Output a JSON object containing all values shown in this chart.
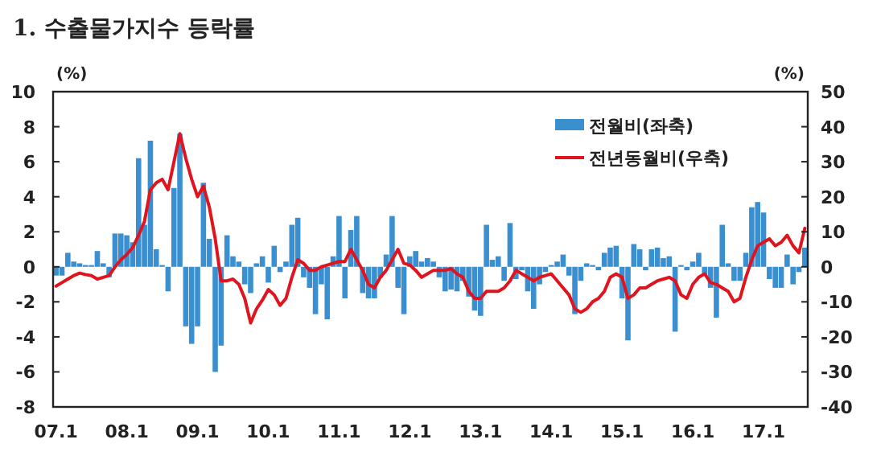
{
  "chart_data": {
    "type": "bar",
    "title": "1. 수출물가지수 등락률",
    "ylabel": "(%)",
    "y2label": "(%)",
    "categories": [
      "07.1",
      null,
      null,
      null,
      null,
      null,
      null,
      null,
      null,
      null,
      null,
      null,
      "08.1",
      null,
      null,
      null,
      null,
      null,
      null,
      null,
      null,
      null,
      null,
      null,
      "09.1",
      null,
      null,
      null,
      null,
      null,
      null,
      null,
      null,
      null,
      null,
      null,
      "10.1",
      null,
      null,
      null,
      null,
      null,
      null,
      null,
      null,
      null,
      null,
      null,
      "11.1",
      null,
      null,
      null,
      null,
      null,
      null,
      null,
      null,
      null,
      null,
      null,
      "12.1",
      null,
      null,
      null,
      null,
      null,
      null,
      null,
      null,
      null,
      null,
      null,
      "13.1",
      null,
      null,
      null,
      null,
      null,
      null,
      null,
      null,
      null,
      null,
      null,
      "14.1",
      null,
      null,
      null,
      null,
      null,
      null,
      null,
      null,
      null,
      null,
      null,
      "15.1",
      null,
      null,
      null,
      null,
      null,
      null,
      null,
      null,
      null,
      null,
      null,
      "16.1",
      null,
      null,
      null,
      null,
      null,
      null,
      null,
      null,
      null,
      null,
      null,
      "17.1",
      null,
      null,
      null,
      null,
      null,
      null,
      null
    ],
    "series": [
      {
        "name": "전월비(좌축)",
        "color": "#3a8fd0",
        "values": [
          -0.5,
          -0.5,
          0.8,
          0.3,
          0.2,
          0.1,
          0.1,
          0.9,
          0.2,
          -0.6,
          1.9,
          1.9,
          1.8,
          1.4,
          6.2,
          2.4,
          7.2,
          1.0,
          0.1,
          -1.4,
          4.5,
          7.6,
          -3.4,
          -4.4,
          -3.4,
          4.8,
          1.6,
          -6.0,
          -4.5,
          1.8,
          0.6,
          0.3,
          -1.0,
          -1.5,
          0.2,
          0.6,
          -0.9,
          1.2,
          -0.3,
          0.3,
          2.4,
          2.8,
          -0.6,
          -1.2,
          -2.7,
          -1.0,
          -3.0,
          0.6,
          2.9,
          -1.8,
          2.1,
          2.9,
          -1.5,
          -1.8,
          -1.8,
          -0.6,
          0.7,
          2.9,
          -1.2,
          -2.7,
          0.6,
          0.9,
          0.3,
          0.5,
          0.3,
          -0.6,
          -1.4,
          -1.3,
          -1.4,
          -0.8,
          -1.7,
          -2.5,
          -2.8,
          2.4,
          0.4,
          0.6,
          -0.8,
          2.5,
          -0.7,
          -0.2,
          -1.4,
          -2.4,
          -1.0,
          -0.3,
          0.1,
          0.3,
          0.7,
          -0.5,
          -2.7,
          -0.8,
          0.2,
          0.1,
          -0.2,
          0.8,
          1.1,
          1.2,
          -1.8,
          -4.2,
          1.3,
          1.0,
          -0.2,
          1.0,
          1.1,
          0.5,
          0.6,
          -3.7,
          0.1,
          -0.2,
          0.3,
          0.8,
          -0.5,
          -1.2,
          -2.9,
          2.4,
          0.2,
          -0.8,
          -0.8,
          0.8,
          3.4,
          3.7,
          3.1,
          -0.7,
          -1.2,
          -1.2,
          0.7,
          -1.0,
          -0.3,
          1.1
        ]
      },
      {
        "name": "전년동월비(우축)",
        "type": "line",
        "axis": "y2",
        "color": "#e0141e",
        "values": [
          -5.5,
          -4.5,
          -3.5,
          -2.5,
          -1.8,
          -2.2,
          -2.5,
          -3.5,
          -3.0,
          -2.5,
          0.0,
          2.0,
          3.5,
          5.5,
          9.0,
          13.0,
          22.0,
          24.0,
          25.0,
          22.0,
          30.0,
          38.0,
          31.0,
          25.0,
          20.0,
          23.0,
          17.0,
          8.0,
          -4.0,
          -4.0,
          -3.5,
          -5.0,
          -9.0,
          -16.0,
          -12.0,
          -9.5,
          -6.5,
          -8,
          -11,
          -9,
          -3,
          2,
          1,
          -1,
          -1,
          0,
          0.5,
          1,
          1.5,
          1.5,
          5,
          2,
          -1,
          -5,
          -6,
          -3,
          -1,
          2,
          5,
          1,
          0.5,
          -1,
          -3,
          -2,
          -1,
          -1,
          -1,
          -0.5,
          -2,
          -3,
          -7,
          -9,
          -9,
          -7,
          -7,
          -7,
          -6,
          -4,
          -1,
          -2,
          -3,
          -4,
          -3,
          -2.5,
          -2,
          -4,
          -6,
          -8,
          -12,
          -13,
          -12,
          -10,
          -9,
          -7,
          -3,
          -2,
          -3,
          -9,
          -8,
          -6,
          -6,
          -5,
          -4,
          -3.5,
          -3,
          -4,
          -8,
          -9,
          -5,
          -3,
          -2,
          -4.5,
          -5,
          -6,
          -7,
          -10,
          -9,
          -3,
          2,
          6,
          7,
          8,
          6,
          7,
          9,
          6,
          4,
          11
        ]
      }
    ],
    "ylim": [
      -8,
      10
    ],
    "yticks": [
      -8,
      -6,
      -4,
      -2,
      0,
      2,
      4,
      6,
      8,
      10
    ],
    "y2lim": [
      -40,
      50
    ],
    "y2ticks": [
      -40,
      -30,
      -20,
      -10,
      0,
      10,
      20,
      30,
      40,
      50
    ],
    "legend": "top right"
  }
}
